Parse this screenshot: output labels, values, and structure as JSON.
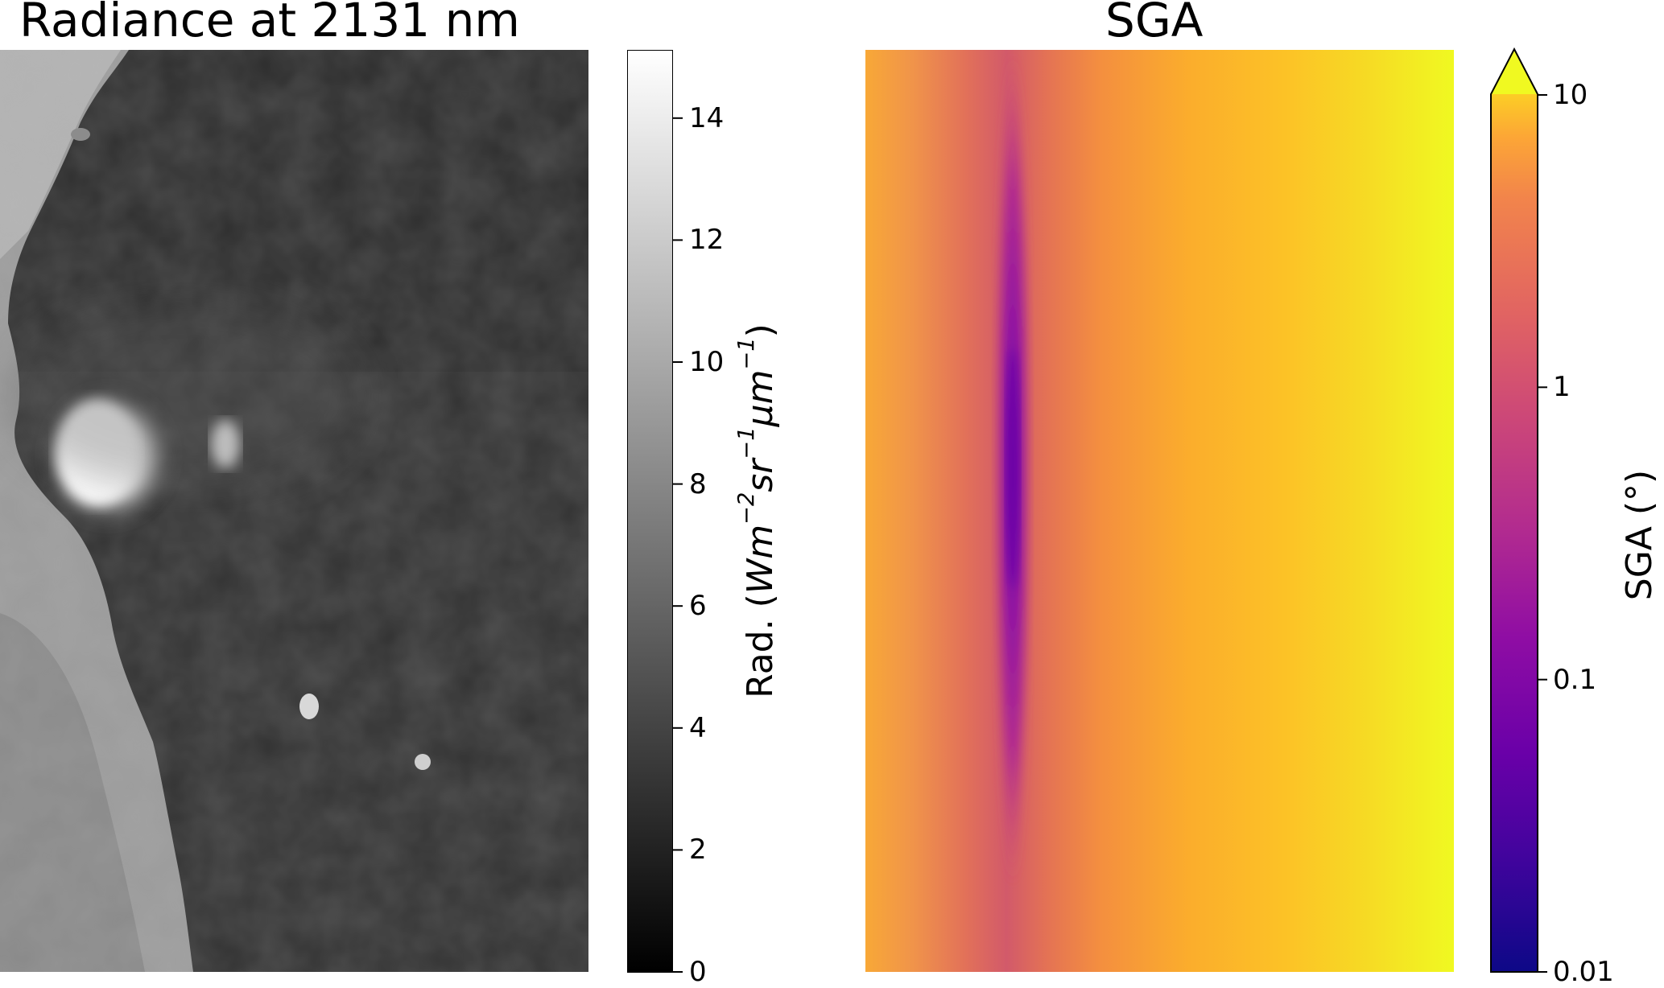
{
  "chart_data": [
    {
      "type": "heatmap",
      "title": "Radiance at 2131 nm",
      "colormap": "gray",
      "colorbar": {
        "label_prefix": "Rad. (",
        "label_unit": [
          "Wm",
          "−2",
          "sr",
          "−1",
          "μm",
          "−1"
        ],
        "label_suffix": ")",
        "range": [
          0,
          15
        ],
        "scale": "linear",
        "ticks": [
          0,
          2,
          4,
          6,
          8,
          10,
          12,
          14
        ],
        "tick_labels": [
          "0",
          "2",
          "4",
          "6",
          "8",
          "10",
          "12",
          "14"
        ]
      },
      "content": "grayscale satellite radiance image: bright coastline land on the left, dark sea, bright sunglint patch near the coast"
    },
    {
      "type": "heatmap",
      "title": "SGA",
      "colormap": "plasma",
      "colorbar": {
        "label": "SGA (°)",
        "range": [
          0.01,
          10
        ],
        "scale": "log",
        "extend": "max",
        "ticks": [
          0.01,
          0.1,
          1,
          10
        ],
        "tick_labels": [
          "0.01",
          "0.1",
          "1",
          "10"
        ]
      },
      "content": "sun glint angle field, minimum vertical streak near left third, increasing toward the right edge"
    }
  ],
  "colors": {
    "plasma_low": "#0d0887",
    "plasma_high": "#f0f921",
    "gray_low": "#000000",
    "gray_high": "#ffffff"
  }
}
